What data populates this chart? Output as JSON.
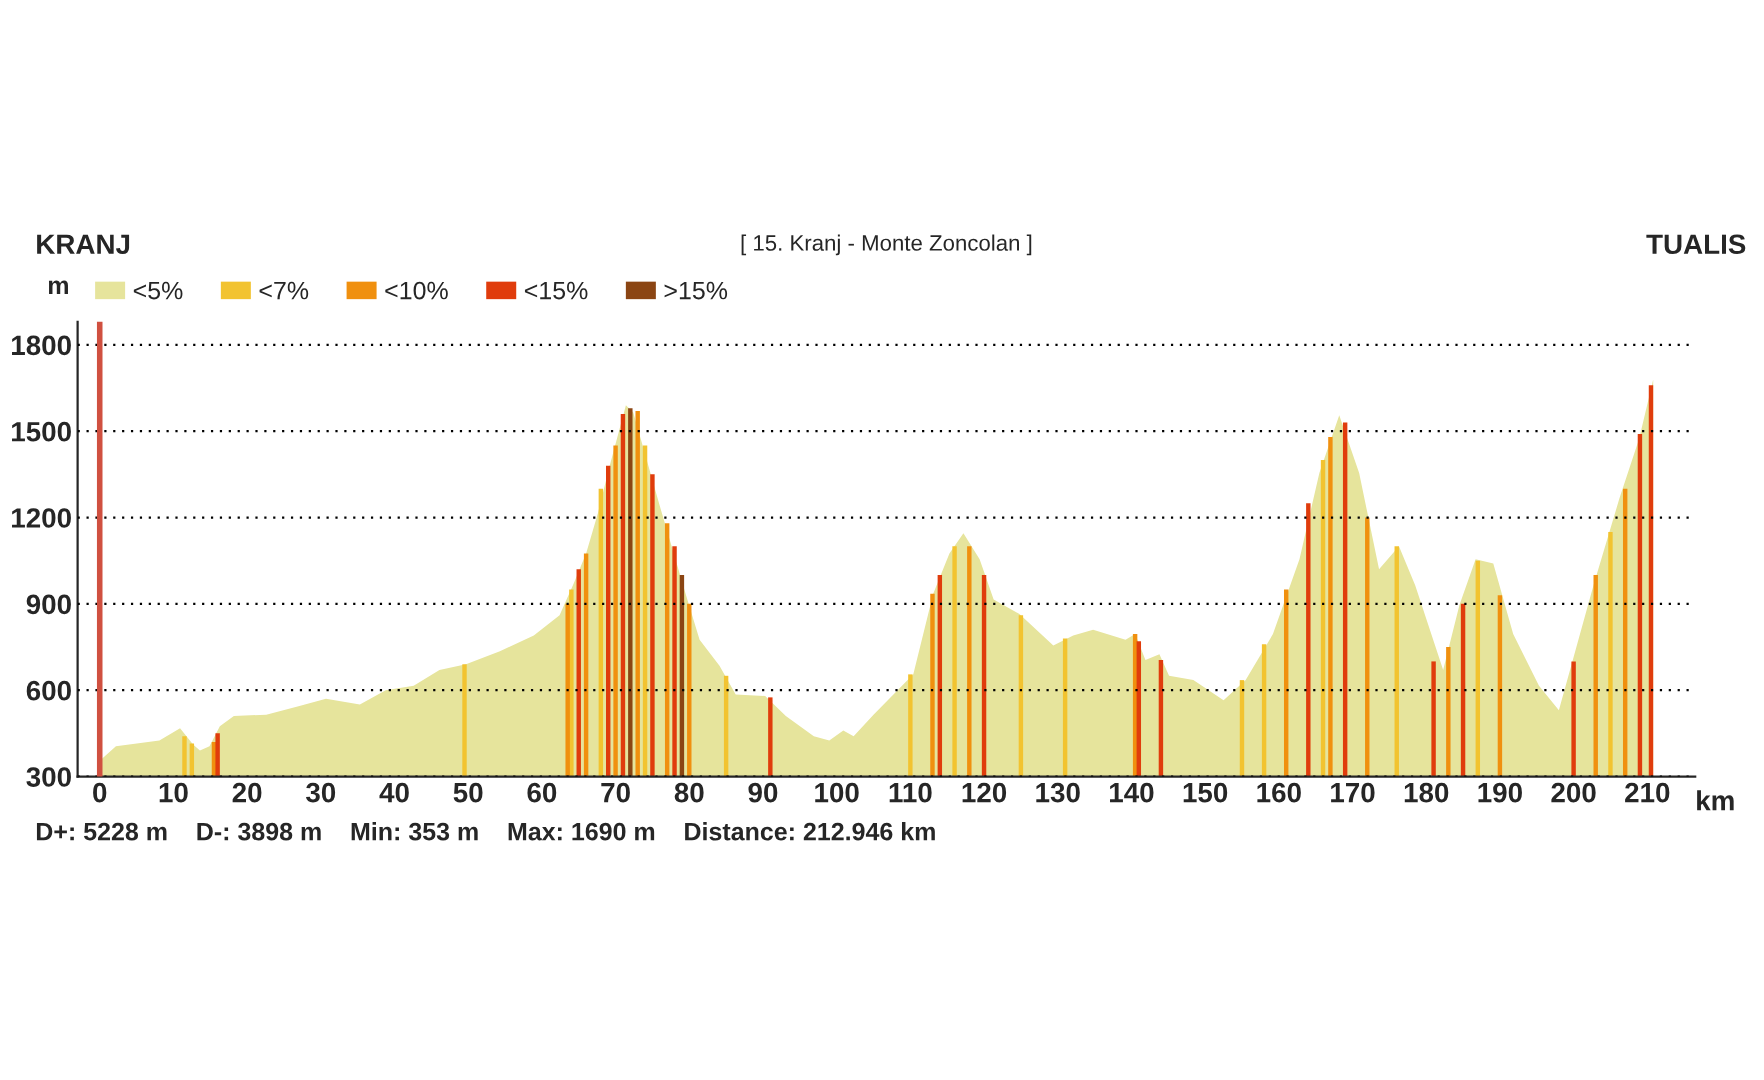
{
  "chart_data": {
    "type": "area",
    "title": "[ 15. Kranj - Monte Zoncolan ]",
    "xlabel": "km",
    "ylabel": "m",
    "annotations": [
      "KRANJ",
      "TUALIS",
      "D+: 5228 m",
      "D-: 3898 m",
      "Min: 353 m",
      "Max: 1690 m",
      "Distance: 212.946 km"
    ],
    "xlim": [
      -3,
      216.5
    ],
    "xticks": [
      0,
      10,
      20,
      30,
      40,
      50,
      60,
      70,
      80,
      90,
      100,
      110,
      120,
      130,
      140,
      150,
      160,
      170,
      180,
      190,
      200,
      210
    ],
    "ylim": [
      300,
      1880
    ],
    "yticks": [
      300,
      600,
      900,
      1200,
      1500,
      1800
    ],
    "grid": "y",
    "legend": "top left",
    "ref_lines": [
      {
        "axis": "x",
        "value": 0,
        "color": "#d05040"
      }
    ],
    "series": [
      {
        "name": "<5%",
        "color": "#e6e49c",
        "x": [
          0,
          2.2,
          8.1,
          10.9,
          12.7,
          13.6,
          14.9,
          16.3,
          18.2,
          22.6,
          27.1,
          30.7,
          35.3,
          38.8,
          42.6,
          46.1,
          49.7,
          54.3,
          58.9,
          62.4,
          64.3,
          66,
          67.6,
          69.2,
          71.4,
          72.4,
          76,
          79.5,
          81.4,
          84.1,
          86.3,
          90.3,
          93.1,
          96.9,
          99,
          100.9,
          102.3,
          105,
          107.7,
          110.4,
          113.1,
          115.3,
          117.2,
          119.4,
          121.3,
          124.8,
          129.4,
          132.1,
          134.8,
          139.2,
          140.5,
          141.9,
          143.8,
          145.1,
          148.4,
          152.5,
          155.5,
          159.2,
          162.8,
          165.5,
          168.2,
          170.9,
          173.6,
          176.3,
          178.5,
          182.3,
          184.5,
          186.7,
          189.1,
          191.8,
          195.3,
          198,
          202.7,
          206.2,
          208.9,
          210.8
        ],
        "values": [
          355,
          405,
          425,
          468,
          410,
          390,
          405,
          475,
          510,
          515,
          545,
          570,
          550,
          600,
          615,
          670,
          690,
          735,
          790,
          860,
          970,
          1075,
          1215,
          1380,
          1590,
          1565,
          1240,
          935,
          775,
          685,
          585,
          580,
          510,
          440,
          425,
          460,
          440,
          515,
          585,
          655,
          935,
          1075,
          1145,
          1055,
          915,
          865,
          755,
          790,
          810,
          775,
          795,
          705,
          725,
          650,
          635,
          565,
          635,
          795,
          1055,
          1355,
          1555,
          1355,
          1020,
          1100,
          965,
          670,
          895,
          1055,
          1040,
          795,
          615,
          530,
          965,
          1265,
          1475,
          1680
        ]
      },
      {
        "name": "<7%",
        "type": "bar",
        "color": "#f2c330",
        "x": [
          11.5,
          12.5,
          49.5,
          64,
          68,
          74,
          85,
          110,
          116,
          125,
          131,
          155,
          158,
          166,
          176,
          187,
          205
        ],
        "values": [
          440,
          415,
          690,
          950,
          1300,
          1450,
          650,
          655,
          1100,
          860,
          780,
          635,
          760,
          1400,
          1100,
          1050,
          1150
        ]
      },
      {
        "name": "<10%",
        "type": "bar",
        "color": "#f0900f",
        "x": [
          15.5,
          63.5,
          66,
          70,
          73,
          77,
          80,
          113,
          118,
          140.5,
          161,
          167,
          172,
          183,
          190,
          203,
          207
        ],
        "values": [
          420,
          900,
          1075,
          1450,
          1570,
          1180,
          900,
          935,
          1100,
          795,
          950,
          1480,
          1200,
          750,
          930,
          1000,
          1300
        ]
      },
      {
        "name": "<15%",
        "type": "bar",
        "color": "#e03c0c",
        "x": [
          16,
          65,
          69,
          71,
          75,
          78,
          91,
          114,
          120,
          141,
          144,
          164,
          169,
          181,
          185,
          200,
          209,
          210.5
        ],
        "values": [
          450,
          1020,
          1380,
          1560,
          1350,
          1100,
          575,
          1000,
          1000,
          770,
          705,
          1250,
          1530,
          700,
          900,
          700,
          1490,
          1660
        ]
      },
      {
        "name": ">15%",
        "type": "bar",
        "color": "#8b4513",
        "x": [
          72,
          79
        ],
        "values": [
          1580,
          1000
        ]
      }
    ]
  }
}
